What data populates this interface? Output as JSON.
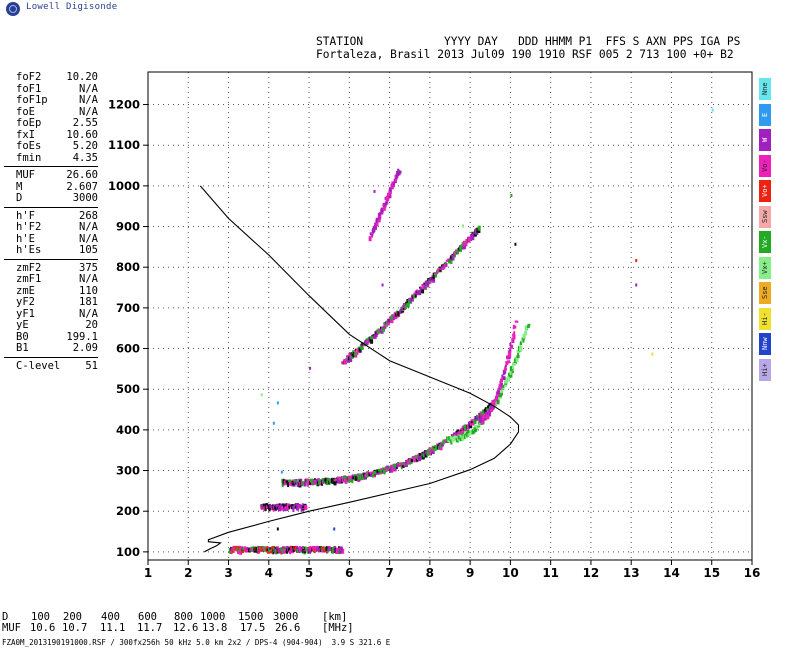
{
  "logo": {
    "text": "Lowell Digisonde",
    "icon": "globe-icon"
  },
  "header": {
    "line1": "STATION            YYYY DAY   DDD HHMM P1  FFS S AXN PPS IGA PS",
    "line2": "Fortaleza, Brasil 2013 Jul09 190 1910 RSF 005 2 713 100 +0+ B2"
  },
  "params": [
    [
      {
        "k": "foF2",
        "v": "10.20"
      },
      {
        "k": "foF1",
        "v": "N/A"
      },
      {
        "k": "foF1p",
        "v": "N/A"
      },
      {
        "k": "foE",
        "v": "N/A"
      },
      {
        "k": "foEp",
        "v": "2.55"
      },
      {
        "k": "fxI",
        "v": "10.60"
      },
      {
        "k": "foEs",
        "v": "5.20"
      },
      {
        "k": "fmin",
        "v": "4.35"
      }
    ],
    [
      {
        "k": "MUF",
        "v": "26.60"
      },
      {
        "k": "M",
        "v": "2.607"
      },
      {
        "k": "D",
        "v": "3000"
      }
    ],
    [
      {
        "k": "h'F",
        "v": "268"
      },
      {
        "k": "h'F2",
        "v": "N/A"
      },
      {
        "k": "h'E",
        "v": "N/A"
      },
      {
        "k": "h'Es",
        "v": "105"
      }
    ],
    [
      {
        "k": "zmF2",
        "v": "375"
      },
      {
        "k": "zmF1",
        "v": "N/A"
      },
      {
        "k": "zmE",
        "v": "110"
      },
      {
        "k": "yF2",
        "v": "181"
      },
      {
        "k": "yF1",
        "v": "N/A"
      },
      {
        "k": "yE",
        "v": "20"
      },
      {
        "k": "B0",
        "v": "199.1"
      },
      {
        "k": "B1",
        "v": "2.09"
      }
    ],
    [
      {
        "k": "C-level",
        "v": "51"
      }
    ]
  ],
  "muf_table": {
    "d_label": "D",
    "muf_label": "MUF",
    "d_values": [
      "100",
      "200",
      "400",
      "600",
      "800",
      "1000",
      "1500",
      "3000"
    ],
    "muf_values": [
      "10.6",
      "10.7",
      "11.1",
      "11.7",
      "12.6",
      "13.8",
      "17.5",
      "26.6"
    ],
    "d_unit": "[km]",
    "muf_unit": "[MHz]"
  },
  "footer": "FZA0M_2013190191000.RSF / 300fx256h 50 kHz 5.0 km 2x2 / DPS-4 (904-904)  3.9 S 321.6 E",
  "legend": [
    {
      "label": "Nne",
      "color": "#66e6ee"
    },
    {
      "label": "E",
      "color": "#2f9bf0"
    },
    {
      "label": "W",
      "color": "#a020c0"
    },
    {
      "label": "Vo-",
      "color": "#ee22bb"
    },
    {
      "label": "Vo+",
      "color": "#ee2211"
    },
    {
      "label": "Ssw",
      "color": "#f4a8a8"
    },
    {
      "label": "Vx-",
      "color": "#22aa22"
    },
    {
      "label": "Vx+",
      "color": "#88ee88"
    },
    {
      "label": "Sse",
      "color": "#eeaa22"
    },
    {
      "label": "Hi-",
      "color": "#f0e030"
    },
    {
      "label": "Nnw",
      "color": "#2244cc"
    },
    {
      "label": "Hi+",
      "color": "#b8a8e8"
    }
  ],
  "chart_data": {
    "type": "scatter",
    "xlim": [
      1,
      16
    ],
    "ylim": [
      80,
      1280
    ],
    "xticks": [
      1,
      2,
      3,
      4,
      5,
      6,
      7,
      8,
      9,
      10,
      11,
      12,
      13,
      14,
      15,
      16
    ],
    "yticks": [
      100,
      200,
      300,
      400,
      500,
      600,
      700,
      800,
      900,
      1000,
      1100,
      1200
    ],
    "grid": true,
    "profile_curve": {
      "x": [
        2.4,
        2.55,
        2.7,
        2.8,
        2.5,
        2.5,
        3.0,
        4.0,
        5.0,
        6.0,
        7.0,
        8.0,
        9.0,
        9.6,
        10.0,
        10.2,
        10.2,
        10.0,
        9.6,
        9.0,
        8.0,
        7.0,
        6.0,
        5.0,
        4.0,
        3.0,
        2.3
      ],
      "y": [
        100,
        108,
        115,
        122,
        125,
        130,
        148,
        175,
        200,
        222,
        245,
        268,
        302,
        330,
        365,
        395,
        412,
        432,
        458,
        490,
        530,
        570,
        635,
        730,
        830,
        920,
        1000
      ]
    },
    "traces": [
      {
        "name": "Es layer",
        "x0": 3.0,
        "x1": 5.8,
        "y0": 110,
        "y1": 110,
        "colors": [
          "#111111",
          "#ee22bb",
          "#ee2211",
          "#22aa22",
          "#a020c0"
        ]
      },
      {
        "name": "Es 2nd",
        "x0": 3.8,
        "x1": 4.9,
        "y0": 215,
        "y1": 215,
        "colors": [
          "#a020c0",
          "#ee22bb",
          "#111111"
        ]
      },
      {
        "name": "F trace",
        "x0": 4.3,
        "x1": 9.6,
        "y0": 275,
        "y1": 475,
        "curve": 2.6,
        "colors": [
          "#a020c0",
          "#ee22bb",
          "#111111",
          "#22aa22"
        ]
      },
      {
        "name": "F x-trace",
        "x0": 8.4,
        "x1": 10.4,
        "y0": 380,
        "y1": 660,
        "curve": 2.2,
        "colors": [
          "#22aa22",
          "#88ee88"
        ]
      },
      {
        "name": "F o-upper",
        "x0": 9.2,
        "x1": 10.1,
        "y0": 430,
        "y1": 670,
        "curve": 2.0,
        "colors": [
          "#ee22bb",
          "#a020c0"
        ]
      },
      {
        "name": "2F trace",
        "x0": 5.8,
        "x1": 9.2,
        "y0": 570,
        "y1": 900,
        "curve": 1.1,
        "colors": [
          "#a020c0",
          "#ee22bb",
          "#111111",
          "#22aa22"
        ]
      },
      {
        "name": "3F trace",
        "x0": 6.5,
        "x1": 7.2,
        "y0": 880,
        "y1": 1040,
        "curve": 1.0,
        "colors": [
          "#a020c0",
          "#ee22bb"
        ]
      }
    ]
  }
}
